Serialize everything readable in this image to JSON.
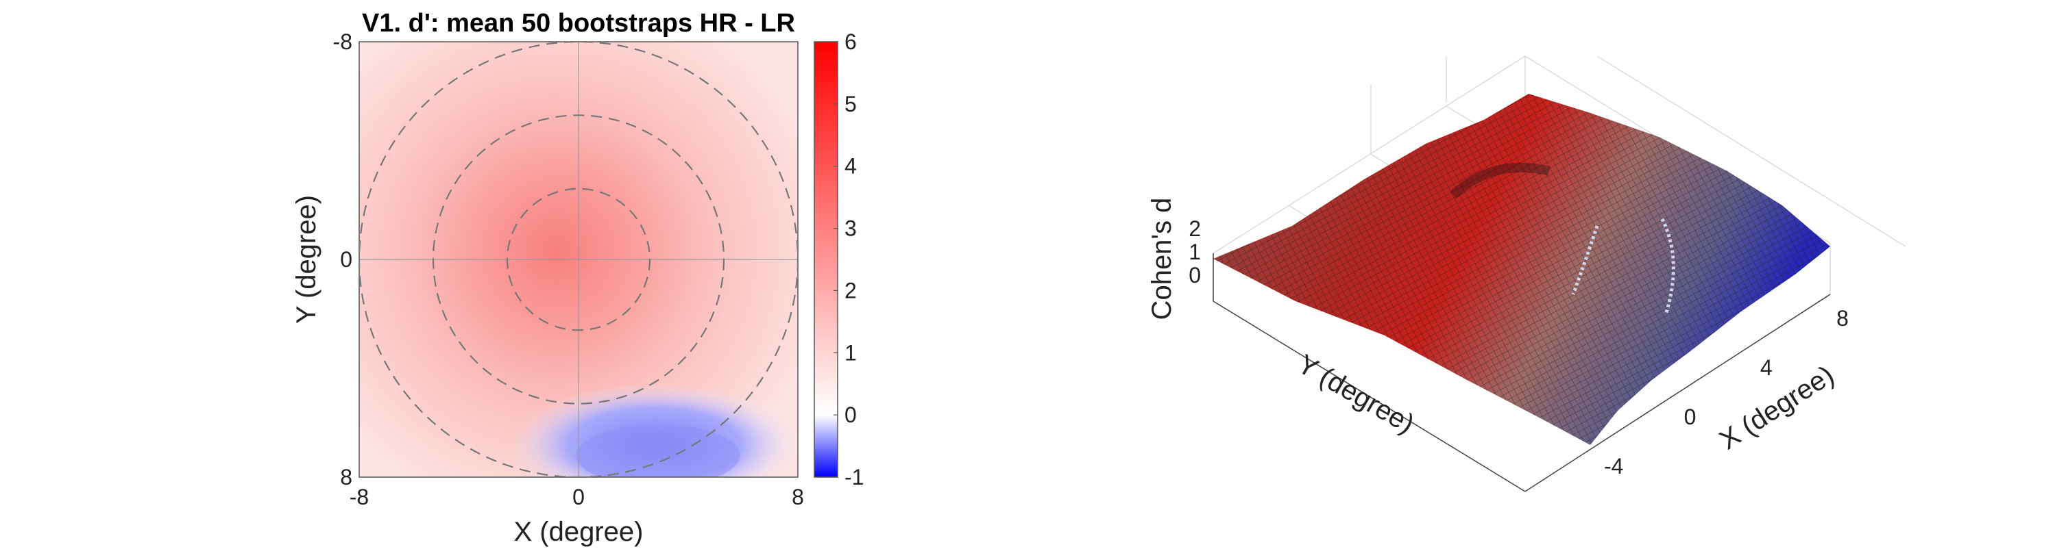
{
  "chart_data": [
    {
      "type": "heatmap",
      "title": "V1. d': mean 50 bootstraps HR - LR",
      "xlabel": "X (degree)",
      "ylabel": "Y (degree)",
      "xlim": [
        -8,
        8
      ],
      "ylim": [
        -8,
        8
      ],
      "y_direction": "reverse",
      "x_ticks": [
        "-8",
        "0",
        "8"
      ],
      "y_ticks": [
        "-8",
        "0",
        "8"
      ],
      "colorbar": {
        "range": [
          -1,
          6
        ],
        "ticks": [
          "-1",
          "0",
          "1",
          "2",
          "3",
          "4",
          "5",
          "6"
        ],
        "colormap": [
          "#0000ff",
          "#ffffff",
          "#ff0000"
        ]
      },
      "peak": {
        "x": -0.5,
        "y": 0.5,
        "value": 2.5
      },
      "low_region": {
        "x": [
          0,
          8
        ],
        "y": [
          5,
          8
        ],
        "value": -0.6
      },
      "dashed_circle_radii": [
        2.6,
        5.3,
        8.0
      ],
      "crosshair": {
        "x": 0,
        "y": 0
      },
      "grid": false
    },
    {
      "type": "surface",
      "zlabel": "Cohen's d",
      "xlabel": "X (degree)",
      "ylabel": "Y (degree)",
      "z_ticks": [
        "2",
        "1",
        "0"
      ],
      "x_ticks": [
        "-4",
        "0",
        "4",
        "8"
      ],
      "zlim": [
        -1,
        2.5
      ],
      "grid": true
    }
  ]
}
